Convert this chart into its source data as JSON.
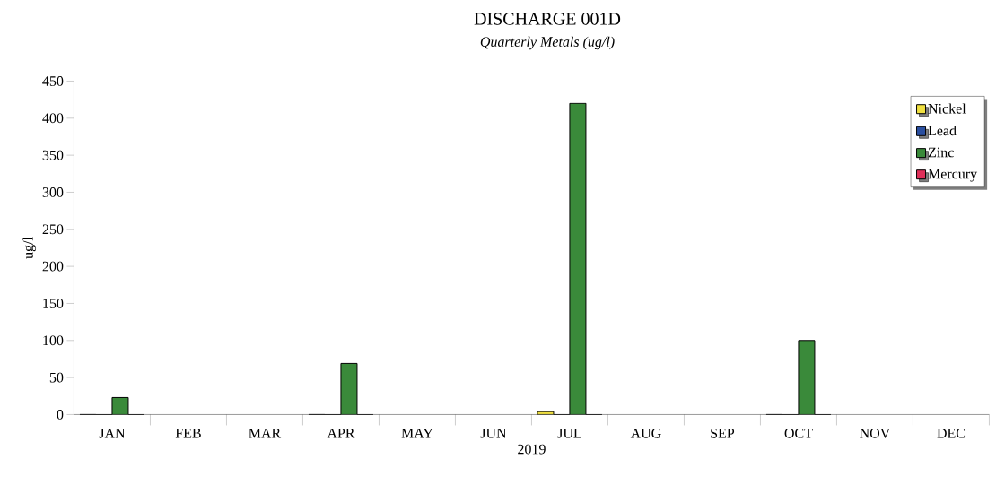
{
  "chart_data": {
    "type": "bar",
    "title": "DISCHARGE 001D",
    "subtitle": "Quarterly Metals (ug/l)",
    "xlabel": "2019",
    "ylabel": "ug/l",
    "categories": [
      "JAN",
      "FEB",
      "MAR",
      "APR",
      "MAY",
      "JUN",
      "JUL",
      "AUG",
      "SEP",
      "OCT",
      "NOV",
      "DEC"
    ],
    "series": [
      {
        "name": "Nickel",
        "color": "#f0e040",
        "values": [
          0,
          null,
          null,
          0,
          null,
          null,
          4,
          null,
          null,
          0,
          null,
          null
        ]
      },
      {
        "name": "Lead",
        "color": "#2a4fa0",
        "values": [
          0,
          null,
          null,
          0,
          null,
          null,
          0,
          null,
          null,
          0,
          null,
          null
        ]
      },
      {
        "name": "Zinc",
        "color": "#3a8a3a",
        "values": [
          23,
          null,
          null,
          69,
          null,
          null,
          420,
          null,
          null,
          100,
          null,
          null
        ]
      },
      {
        "name": "Mercury",
        "color": "#e0305a",
        "values": [
          0,
          null,
          null,
          0,
          null,
          null,
          0,
          null,
          null,
          0,
          null,
          null
        ]
      }
    ],
    "ylim": [
      0,
      450
    ],
    "yticks": [
      0,
      50,
      100,
      150,
      200,
      250,
      300,
      350,
      400,
      450
    ],
    "grid": false,
    "legend": "top right"
  }
}
